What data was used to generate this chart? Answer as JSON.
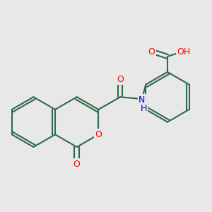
{
  "background_color": "#e8e8e8",
  "bond_color": "#2d6b4a",
  "bond_width": 1.5,
  "atom_colors": {
    "O": "#ff0000",
    "N": "#0000cc",
    "H": "#555555"
  },
  "font_size": 9,
  "figsize": [
    3.0,
    3.0
  ],
  "dpi": 100
}
